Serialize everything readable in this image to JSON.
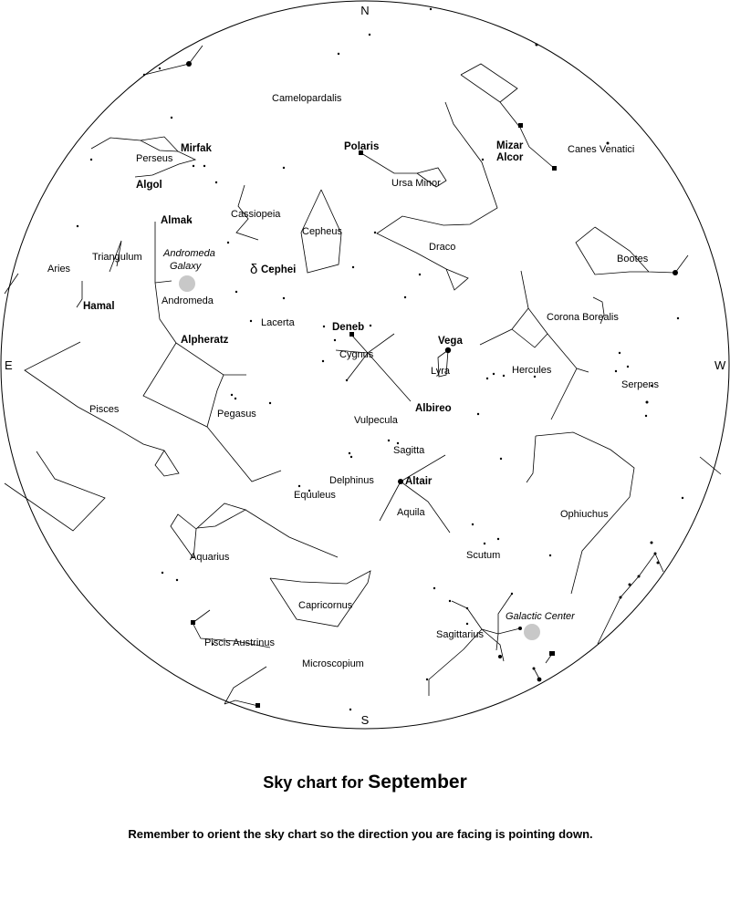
{
  "title": {
    "prefix": "Sky chart for",
    "month": "September"
  },
  "note": "Remember to orient the sky chart so the direction you are facing is pointing down.",
  "directions": {
    "north": "N",
    "south": "S",
    "east": "E",
    "west": "W"
  },
  "constellations": {
    "camelopardalis": "Camelopardalis",
    "perseus": "Perseus",
    "canes_venatici": "Canes Venatici",
    "ursa_minor": "Ursa Minor",
    "cassiopeia": "Cassiopeia",
    "cepheus": "Cepheus",
    "triangulum": "Triangulum",
    "aries": "Aries",
    "draco": "Draco",
    "bootes": "Bootes",
    "andromeda": "Andromeda",
    "lacerta": "Lacerta",
    "corona_borealis": "Corona Borealis",
    "cygnus": "Cygnus",
    "lyra": "Lyra",
    "hercules": "Hercules",
    "serpens": "Serpens",
    "pisces": "Pisces",
    "pegasus": "Pegasus",
    "vulpecula": "Vulpecula",
    "sagitta": "Sagitta",
    "delphinus": "Delphinus",
    "equuleus": "Equuleus",
    "aquila": "Aquila",
    "ophiuchus": "Ophiuchus",
    "aquarius": "Aquarius",
    "scutum": "Scutum",
    "capricornus": "Capricornus",
    "sagittarius": "Sagittarius",
    "piscis_austrinus": "Piscis Austrinus",
    "microscopium": "Microscopium"
  },
  "stars": {
    "mirfak": "Mirfak",
    "algol": "Algol",
    "polaris": "Polaris",
    "mizar": "Mizar",
    "alcor": "Alcor",
    "almak": "Almak",
    "delta_symbol": "δ",
    "cephei": "Cephei",
    "hamal": "Hamal",
    "alpheratz": "Alpheratz",
    "deneb": "Deneb",
    "vega": "Vega",
    "albireo": "Albireo",
    "altair": "Altair"
  },
  "objects": {
    "andromeda_line1": "Andromeda",
    "andromeda_line2": "Galaxy",
    "galactic_center": "Galactic Center"
  }
}
